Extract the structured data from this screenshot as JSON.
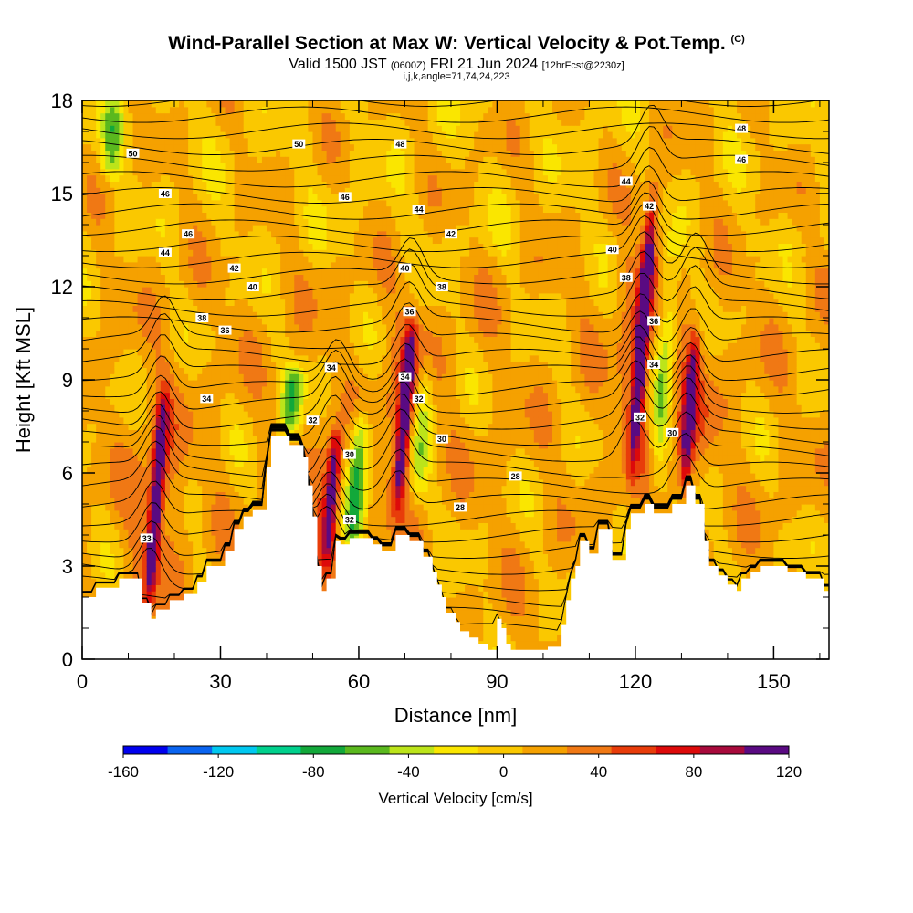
{
  "chart_data": {
    "type": "heatmap",
    "title": "Wind-Parallel Section at Max W: Vertical Velocity & Pot.Temp.",
    "title_mark": "(C)",
    "subtitle_main": "Valid 1500 JST",
    "subtitle_utc": "(0600Z)",
    "subtitle_date": "FRI 21 Jun 2024",
    "subtitle_fcst": "[12hrFcst@2230z]",
    "subsubtitle": "i,j,k,angle=71,74,24,223",
    "xlabel": "Distance [nm]",
    "ylabel": "Height [Kft MSL]",
    "xlim": [
      0,
      162
    ],
    "ylim": [
      0,
      18
    ],
    "xticks": [
      0,
      30,
      60,
      90,
      120,
      150
    ],
    "yticks": [
      0,
      3,
      6,
      9,
      12,
      15,
      18
    ],
    "colorbar": {
      "label": "Vertical Velocity [cm/s]",
      "ticks": [
        -160,
        -120,
        -80,
        -40,
        0,
        40,
        80,
        120
      ],
      "colors": [
        "#0000ee",
        "#0a64f0",
        "#00c8f0",
        "#00d08c",
        "#12a83a",
        "#5ab81e",
        "#bce41a",
        "#fae600",
        "#fac800",
        "#f5a100",
        "#f07814",
        "#e83c0a",
        "#dd0a0a",
        "#a80a3c",
        "#5a0a82"
      ]
    },
    "terrain": [
      [
        0,
        2.0
      ],
      [
        3,
        2.0
      ],
      [
        3,
        2.3
      ],
      [
        8,
        2.3
      ],
      [
        8,
        2.6
      ],
      [
        13,
        2.6
      ],
      [
        13,
        1.8
      ],
      [
        15,
        1.8
      ],
      [
        15,
        1.3
      ],
      [
        16,
        1.3
      ],
      [
        16,
        1.6
      ],
      [
        19,
        1.6
      ],
      [
        19,
        1.9
      ],
      [
        22,
        1.9
      ],
      [
        22,
        2.1
      ],
      [
        25,
        2.1
      ],
      [
        25,
        2.5
      ],
      [
        27,
        2.5
      ],
      [
        27,
        3.0
      ],
      [
        31,
        3.0
      ],
      [
        31,
        3.5
      ],
      [
        33,
        3.5
      ],
      [
        33,
        4.2
      ],
      [
        35,
        4.2
      ],
      [
        35,
        4.6
      ],
      [
        37,
        4.6
      ],
      [
        37,
        4.8
      ],
      [
        40,
        4.8
      ],
      [
        40,
        6.2
      ],
      [
        41,
        6.2
      ],
      [
        41,
        7.2
      ],
      [
        45,
        7.2
      ],
      [
        45,
        6.9
      ],
      [
        48,
        6.9
      ],
      [
        48,
        6.5
      ],
      [
        49,
        6.5
      ],
      [
        49,
        5.6
      ],
      [
        50,
        5.6
      ],
      [
        50,
        4.6
      ],
      [
        51,
        4.6
      ],
      [
        51,
        3.0
      ],
      [
        52,
        3.0
      ],
      [
        52,
        2.2
      ],
      [
        53,
        2.2
      ],
      [
        53,
        2.6
      ],
      [
        55,
        2.6
      ],
      [
        55,
        3.8
      ],
      [
        56,
        3.8
      ],
      [
        56,
        3.7
      ],
      [
        58,
        3.7
      ],
      [
        58,
        3.9
      ],
      [
        63,
        3.9
      ],
      [
        63,
        3.7
      ],
      [
        65,
        3.7
      ],
      [
        65,
        3.5
      ],
      [
        68,
        3.5
      ],
      [
        68,
        4.0
      ],
      [
        71,
        4.0
      ],
      [
        71,
        3.8
      ],
      [
        74,
        3.8
      ],
      [
        74,
        3.3
      ],
      [
        76,
        3.3
      ],
      [
        76,
        2.8
      ],
      [
        77,
        2.8
      ],
      [
        77,
        2.4
      ],
      [
        78,
        2.4
      ],
      [
        78,
        2.0
      ],
      [
        79,
        2.0
      ],
      [
        79,
        1.5
      ],
      [
        81,
        1.5
      ],
      [
        81,
        1.2
      ],
      [
        82,
        1.2
      ],
      [
        82,
        0.9
      ],
      [
        84,
        0.9
      ],
      [
        84,
        0.7
      ],
      [
        86,
        0.7
      ],
      [
        86,
        0.5
      ],
      [
        88,
        0.5
      ],
      [
        88,
        0.3
      ],
      [
        90,
        0.3
      ],
      [
        90,
        1.3
      ],
      [
        91,
        1.3
      ],
      [
        91,
        1.0
      ],
      [
        92,
        1.0
      ],
      [
        92,
        0.5
      ],
      [
        93,
        0.5
      ],
      [
        93,
        0.3
      ],
      [
        101,
        0.3
      ],
      [
        101,
        0.4
      ],
      [
        104,
        0.4
      ],
      [
        104,
        1.1
      ],
      [
        105,
        1.1
      ],
      [
        105,
        1.9
      ],
      [
        106,
        1.9
      ],
      [
        106,
        2.6
      ],
      [
        107,
        2.6
      ],
      [
        107,
        3.0
      ],
      [
        108,
        3.0
      ],
      [
        108,
        3.8
      ],
      [
        110,
        3.8
      ],
      [
        110,
        3.4
      ],
      [
        112,
        3.4
      ],
      [
        112,
        4.2
      ],
      [
        115,
        4.2
      ],
      [
        115,
        3.2
      ],
      [
        118,
        3.2
      ],
      [
        118,
        4.2
      ],
      [
        119,
        4.2
      ],
      [
        119,
        4.7
      ],
      [
        122,
        4.7
      ],
      [
        122,
        5.0
      ],
      [
        124,
        5.0
      ],
      [
        124,
        4.7
      ],
      [
        128,
        4.7
      ],
      [
        128,
        5.0
      ],
      [
        131,
        5.0
      ],
      [
        131,
        5.6
      ],
      [
        133,
        5.6
      ],
      [
        133,
        5.0
      ],
      [
        135,
        5.0
      ],
      [
        135,
        3.8
      ],
      [
        136,
        3.8
      ],
      [
        136,
        3.0
      ],
      [
        138,
        3.0
      ],
      [
        138,
        2.7
      ],
      [
        140,
        2.7
      ],
      [
        140,
        2.4
      ],
      [
        142,
        2.4
      ],
      [
        142,
        2.2
      ],
      [
        143,
        2.2
      ],
      [
        143,
        2.6
      ],
      [
        145,
        2.6
      ],
      [
        145,
        2.8
      ],
      [
        147,
        2.8
      ],
      [
        147,
        3.0
      ],
      [
        153,
        3.0
      ],
      [
        153,
        2.8
      ],
      [
        157,
        2.8
      ],
      [
        157,
        2.6
      ],
      [
        161,
        2.6
      ],
      [
        161,
        2.2
      ],
      [
        162,
        2.2
      ]
    ],
    "updrafts": [
      {
        "x": 14.5,
        "ytop": 8.5,
        "ybot": 2.0,
        "peak": 110
      },
      {
        "x": 53.0,
        "ytop": 7.3,
        "ybot": 3.2,
        "peak": 100
      },
      {
        "x": 68.5,
        "ytop": 10.8,
        "ybot": 5.0,
        "peak": 110
      },
      {
        "x": 119.5,
        "ytop": 14.8,
        "ybot": 6.5,
        "peak": 120
      },
      {
        "x": 130.5,
        "ytop": 10.5,
        "ybot": 5.5,
        "peak": 90
      }
    ],
    "downdrafts": [
      {
        "x": 58.5,
        "ytop": 8.0,
        "ybot": 3.5,
        "peak": -95
      },
      {
        "x": 45.0,
        "ytop": 9.5,
        "ybot": 7.2,
        "peak": -65
      },
      {
        "x": 124.5,
        "ytop": 13.5,
        "ybot": 5.5,
        "peak": -60
      },
      {
        "x": 6.0,
        "ytop": 18.0,
        "ybot": 15.5,
        "peak": -50
      },
      {
        "x": 72.5,
        "ytop": 9.5,
        "ybot": 5.0,
        "peak": -55
      }
    ],
    "isentrope_labels": [
      {
        "x": 143,
        "y": 17.1,
        "v": "48"
      },
      {
        "x": 143,
        "y": 16.1,
        "v": "46"
      },
      {
        "x": 11,
        "y": 16.3,
        "v": "50"
      },
      {
        "x": 47,
        "y": 16.6,
        "v": "50"
      },
      {
        "x": 69,
        "y": 16.6,
        "v": "48"
      },
      {
        "x": 18,
        "y": 15.0,
        "v": "46"
      },
      {
        "x": 57,
        "y": 14.9,
        "v": "46"
      },
      {
        "x": 73,
        "y": 14.5,
        "v": "44"
      },
      {
        "x": 118,
        "y": 15.4,
        "v": "44"
      },
      {
        "x": 123,
        "y": 14.6,
        "v": "42"
      },
      {
        "x": 23,
        "y": 13.7,
        "v": "46"
      },
      {
        "x": 18,
        "y": 13.1,
        "v": "44"
      },
      {
        "x": 80,
        "y": 13.7,
        "v": "42"
      },
      {
        "x": 115,
        "y": 13.2,
        "v": "40"
      },
      {
        "x": 33,
        "y": 12.6,
        "v": "42"
      },
      {
        "x": 70,
        "y": 12.6,
        "v": "40"
      },
      {
        "x": 37,
        "y": 12.0,
        "v": "40"
      },
      {
        "x": 78,
        "y": 12.0,
        "v": "38"
      },
      {
        "x": 118,
        "y": 12.3,
        "v": "38"
      },
      {
        "x": 26,
        "y": 11.0,
        "v": "38"
      },
      {
        "x": 71,
        "y": 11.2,
        "v": "36"
      },
      {
        "x": 124,
        "y": 10.9,
        "v": "36"
      },
      {
        "x": 31,
        "y": 10.6,
        "v": "36"
      },
      {
        "x": 54,
        "y": 9.4,
        "v": "34"
      },
      {
        "x": 70,
        "y": 9.1,
        "v": "34"
      },
      {
        "x": 124,
        "y": 9.5,
        "v": "34"
      },
      {
        "x": 27,
        "y": 8.4,
        "v": "34"
      },
      {
        "x": 73,
        "y": 8.4,
        "v": "32"
      },
      {
        "x": 121,
        "y": 7.8,
        "v": "32"
      },
      {
        "x": 50,
        "y": 7.7,
        "v": "32"
      },
      {
        "x": 78,
        "y": 7.1,
        "v": "30"
      },
      {
        "x": 128,
        "y": 7.3,
        "v": "30"
      },
      {
        "x": 58,
        "y": 6.6,
        "v": "30"
      },
      {
        "x": 94,
        "y": 5.9,
        "v": "28"
      },
      {
        "x": 82,
        "y": 4.9,
        "v": "28"
      },
      {
        "x": 58,
        "y": 4.5,
        "v": "32"
      },
      {
        "x": 14,
        "y": 3.9,
        "v": "33"
      }
    ]
  }
}
